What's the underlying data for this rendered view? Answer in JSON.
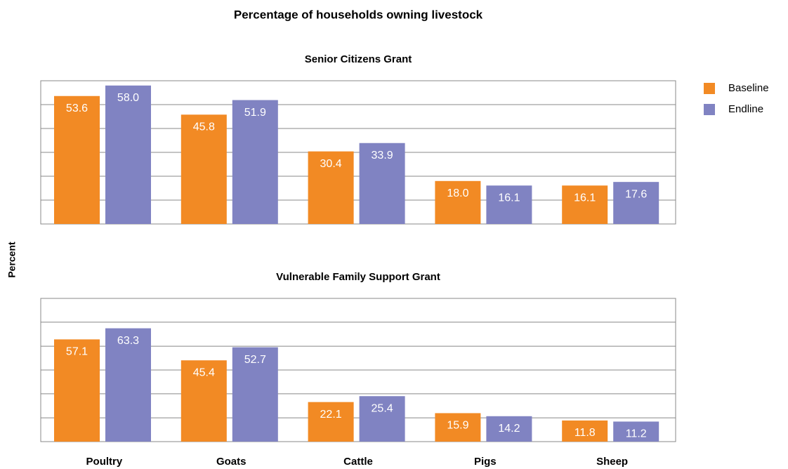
{
  "title": "Percentage of households owning livestock",
  "ylabel": "Percent",
  "chart_data": [
    {
      "type": "bar",
      "title": "Senior Citizens Grant",
      "series": [
        {
          "name": "Baseline",
          "color": "#f28a24",
          "values": [
            53.6,
            45.8,
            30.4,
            18.0,
            16.1
          ],
          "value_labels": [
            "53.6",
            "45.8",
            "30.4",
            "18.0",
            "16.1"
          ]
        },
        {
          "name": "Endline",
          "color": "#8083c2",
          "values": [
            58.0,
            51.9,
            33.9,
            16.1,
            17.6
          ],
          "value_labels": [
            "58.0",
            "51.9",
            "33.9",
            "16.1",
            "17.6"
          ]
        }
      ],
      "ylim": [
        0,
        60
      ],
      "yticks": [
        0,
        10,
        20,
        30,
        40,
        50,
        60
      ],
      "grid": true
    },
    {
      "type": "bar",
      "title": "Vulnerable Family Support Grant",
      "categories": [
        "Poultry",
        "Goats",
        "Cattle",
        "Pigs",
        "Sheep"
      ],
      "series": [
        {
          "color": "#f28a24",
          "values": [
            57.1,
            45.4,
            22.1,
            15.9,
            11.8
          ],
          "value_labels": [
            "57.1",
            "45.4",
            "22.1",
            "15.9",
            "11.8"
          ]
        },
        {
          "color": "#8083c2",
          "values": [
            63.3,
            52.7,
            25.4,
            14.2,
            11.2
          ],
          "value_labels": [
            "63.3",
            "52.7",
            "25.4",
            "14.2",
            "11.2"
          ]
        }
      ],
      "ylim": [
        0,
        80
      ],
      "yticks": [
        0,
        13.3,
        26.7,
        40,
        53.3,
        66.7,
        80
      ],
      "grid": true
    }
  ]
}
